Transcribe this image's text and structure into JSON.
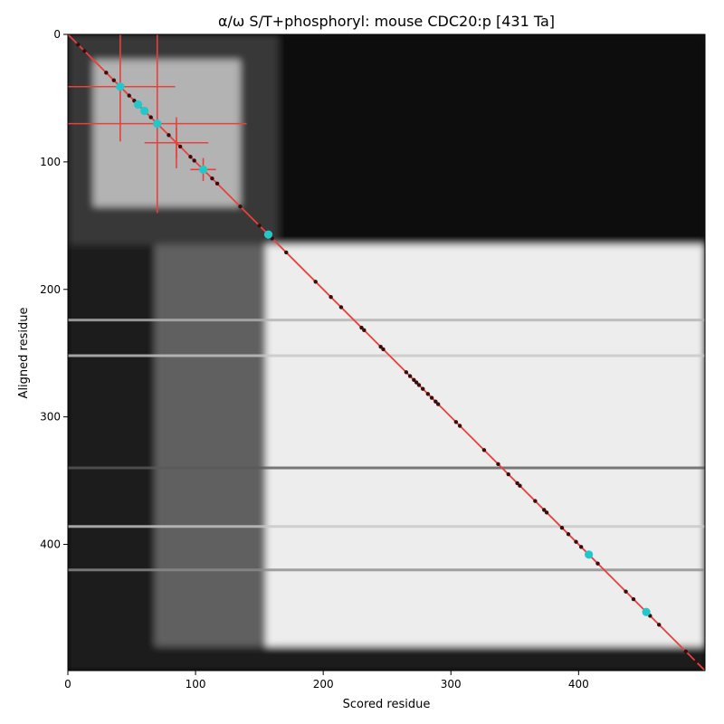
{
  "chart_data": {
    "type": "heatmap",
    "title": "α/ω S/T+phosphoryl: mouse CDC20:p [431 Ta]",
    "xlabel": "Scored residue",
    "ylabel": "Aligned residue",
    "xlim": [
      0,
      499
    ],
    "ylim": [
      499,
      0
    ],
    "xticks": [
      0,
      100,
      200,
      300,
      400
    ],
    "yticks": [
      0,
      100,
      200,
      300,
      400
    ],
    "colormap": "grayscale",
    "diagonal_color": "#e8403a",
    "regions": [
      {
        "x": [
          0,
          165
        ],
        "y": [
          0,
          165
        ],
        "level": 0.22
      },
      {
        "x": [
          165,
          499
        ],
        "y": [
          0,
          165
        ],
        "level": 0.06
      },
      {
        "x": [
          0,
          165
        ],
        "y": [
          165,
          499
        ],
        "level": 0.1
      },
      {
        "x": [
          68,
          160
        ],
        "y": [
          165,
          480
        ],
        "level": 0.38
      },
      {
        "x": [
          20,
          135
        ],
        "y": [
          20,
          135
        ],
        "level": 0.7
      },
      {
        "x": [
          155,
          499
        ],
        "y": [
          165,
          480
        ],
        "level": 0.93
      },
      {
        "x": [
          155,
          499
        ],
        "y": [
          480,
          499
        ],
        "level": 0.12
      }
    ],
    "horizontal_streaks": [
      {
        "y": 340,
        "level": 0.35
      },
      {
        "y": 420,
        "level": 0.55
      },
      {
        "y": 224,
        "level": 0.7
      },
      {
        "y": 252,
        "level": 0.78
      },
      {
        "y": 386,
        "level": 0.78
      }
    ],
    "highlight_points": [
      {
        "x": 41,
        "y": 41
      },
      {
        "x": 55,
        "y": 55
      },
      {
        "x": 60,
        "y": 60
      },
      {
        "x": 70,
        "y": 70
      },
      {
        "x": 106,
        "y": 106
      },
      {
        "x": 157,
        "y": 157
      },
      {
        "x": 408,
        "y": 408
      },
      {
        "x": 453,
        "y": 453
      }
    ],
    "error_crosses": [
      {
        "x": 41,
        "y": 41,
        "xerr": 43,
        "yerr": 43
      },
      {
        "x": 70,
        "y": 70,
        "xerr": 70,
        "yerr": 70
      },
      {
        "x": 85,
        "y": 85,
        "xerr": 12,
        "yerr": 12
      },
      {
        "x": 85,
        "y": 85,
        "xerr": 25,
        "yerr": 20
      },
      {
        "x": 106,
        "y": 106,
        "xerr": 10,
        "yerr": 9
      }
    ],
    "site_points": [
      8,
      13,
      30,
      36,
      48,
      52,
      65,
      79,
      88,
      96,
      99,
      113,
      117,
      135,
      150,
      160,
      171,
      194,
      206,
      214,
      230,
      232,
      245,
      247,
      265,
      268,
      271,
      273,
      275,
      278,
      282,
      285,
      288,
      290,
      304,
      307,
      326,
      337,
      345,
      352,
      354,
      366,
      373,
      375,
      387,
      392,
      398,
      402,
      415,
      437,
      443,
      456,
      463,
      484,
      492
    ]
  }
}
